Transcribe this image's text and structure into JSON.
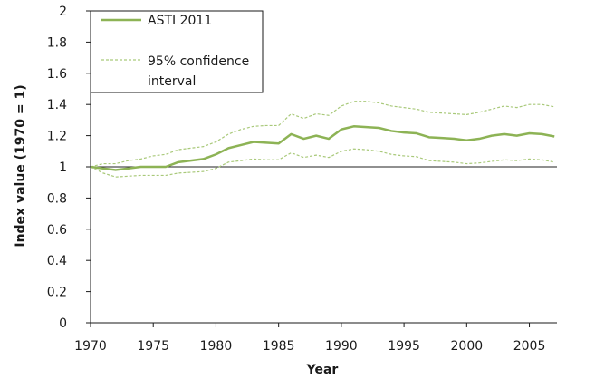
{
  "chart_data": {
    "type": "line",
    "title": "",
    "xlabel": "Year",
    "ylabel": "Index value (1970 = 1)",
    "xlim": [
      1970,
      2007.2
    ],
    "ylim": [
      0,
      2
    ],
    "xticks": [
      1970,
      1975,
      1980,
      1985,
      1990,
      1995,
      2000,
      2005
    ],
    "yticks": [
      0,
      0.2,
      0.4,
      0.6,
      0.8,
      1,
      1.2,
      1.4,
      1.6,
      1.8,
      2
    ],
    "ytick_labels": [
      "0",
      "0.2",
      "0.4",
      "0.6",
      "0.8",
      "1",
      "1.2",
      "1.4",
      "1.6",
      "1.8",
      "2"
    ],
    "x": [
      1970,
      1971,
      1972,
      1973,
      1974,
      1975,
      1976,
      1977,
      1978,
      1979,
      1980,
      1981,
      1982,
      1983,
      1984,
      1985,
      1986,
      1987,
      1988,
      1989,
      1990,
      1991,
      1992,
      1993,
      1994,
      1995,
      1996,
      1997,
      1998,
      1999,
      2000,
      2001,
      2002,
      2003,
      2004,
      2005,
      2006,
      2007
    ],
    "series": [
      {
        "name": "ASTI 2011",
        "color": "#8db355",
        "style": "solid",
        "values": [
          1.0,
          0.99,
          0.98,
          0.99,
          1.0,
          1.0,
          1.0,
          1.03,
          1.04,
          1.05,
          1.08,
          1.12,
          1.14,
          1.16,
          1.155,
          1.15,
          1.21,
          1.18,
          1.2,
          1.18,
          1.24,
          1.26,
          1.255,
          1.25,
          1.23,
          1.22,
          1.215,
          1.19,
          1.185,
          1.18,
          1.17,
          1.18,
          1.2,
          1.21,
          1.2,
          1.215,
          1.21,
          1.195
        ]
      },
      {
        "name": "95% confidence interval",
        "color": "#a9c97a",
        "style": "dashed",
        "values": [
          1.0,
          1.02,
          1.02,
          1.04,
          1.05,
          1.07,
          1.08,
          1.11,
          1.12,
          1.13,
          1.16,
          1.21,
          1.24,
          1.26,
          1.265,
          1.265,
          1.34,
          1.31,
          1.34,
          1.33,
          1.39,
          1.42,
          1.42,
          1.41,
          1.39,
          1.38,
          1.37,
          1.35,
          1.345,
          1.34,
          1.335,
          1.35,
          1.37,
          1.39,
          1.38,
          1.4,
          1.4,
          1.385
        ]
      },
      {
        "name": "",
        "color": "#a9c97a",
        "style": "dashed",
        "values": [
          1.0,
          0.96,
          0.935,
          0.94,
          0.945,
          0.945,
          0.945,
          0.96,
          0.965,
          0.97,
          0.99,
          1.03,
          1.04,
          1.05,
          1.045,
          1.045,
          1.09,
          1.06,
          1.075,
          1.06,
          1.1,
          1.115,
          1.11,
          1.1,
          1.08,
          1.07,
          1.065,
          1.04,
          1.035,
          1.03,
          1.02,
          1.025,
          1.035,
          1.045,
          1.04,
          1.05,
          1.045,
          1.03
        ]
      }
    ],
    "reference_line": {
      "y": 1,
      "color": "#222222"
    },
    "legend": {
      "placement": "top-left",
      "items": [
        {
          "label_lines": [
            "ASTI 2011"
          ],
          "style": "solid",
          "color": "#8db355"
        },
        {
          "label_lines": [
            "95% confidence",
            "interval"
          ],
          "style": "dashed",
          "color": "#a9c97a"
        }
      ]
    },
    "grid": false
  }
}
